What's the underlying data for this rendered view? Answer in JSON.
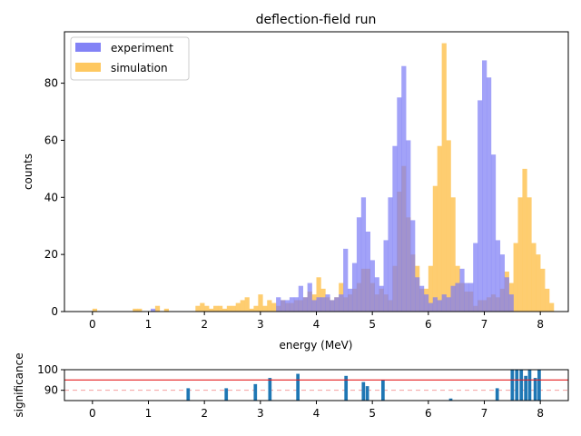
{
  "chart_data": [
    {
      "type": "histogram",
      "title": "deflection-field run",
      "xlabel": "energy (MeV)",
      "ylabel": "counts",
      "xlim": [
        -0.5,
        8.5
      ],
      "ylim": [
        0,
        98
      ],
      "x_ticks": [
        "0",
        "1",
        "2",
        "3",
        "4",
        "5",
        "6",
        "7",
        "8"
      ],
      "y_ticks": [
        "0",
        "20",
        "40",
        "60",
        "80"
      ],
      "legend_position": "top-left",
      "bin_start": 0,
      "bin_width": 0.08,
      "series": [
        {
          "name": "experiment",
          "color": "#7b7bf5",
          "values": [
            0,
            0,
            0,
            0,
            0,
            0,
            0,
            0,
            0,
            0,
            0,
            0,
            0,
            1,
            0,
            0,
            0,
            0,
            0,
            0,
            0,
            0,
            0,
            0,
            0,
            0,
            0,
            0,
            0,
            0,
            0,
            0,
            0,
            0,
            0,
            0,
            0,
            0,
            0,
            0,
            0,
            5,
            4,
            4,
            5,
            5,
            9,
            5,
            10,
            4,
            5,
            5,
            6,
            4,
            5,
            6,
            22,
            8,
            17,
            33,
            40,
            28,
            18,
            12,
            9,
            25,
            40,
            58,
            75,
            86,
            60,
            32,
            12,
            9,
            6,
            3,
            5,
            4,
            6,
            5,
            9,
            10,
            15,
            10,
            10,
            24,
            74,
            88,
            82,
            55,
            25,
            20,
            12,
            6
          ]
        },
        {
          "name": "simulation",
          "color": "#fec860",
          "values": [
            1,
            0,
            0,
            0,
            0,
            0,
            0,
            0,
            0,
            1,
            1,
            0,
            0,
            0,
            2,
            0,
            1,
            0,
            0,
            0,
            0,
            0,
            0,
            2,
            3,
            2,
            1,
            2,
            2,
            1,
            2,
            2,
            3,
            4,
            5,
            1,
            2,
            6,
            2,
            4,
            3,
            2,
            4,
            3,
            3,
            4,
            4,
            5,
            7,
            6,
            12,
            8,
            5,
            4,
            5,
            10,
            5,
            6,
            8,
            10,
            15,
            15,
            10,
            6,
            8,
            6,
            4,
            16,
            42,
            51,
            33,
            20,
            16,
            8,
            8,
            16,
            44,
            58,
            94,
            60,
            40,
            16,
            10,
            7,
            7,
            2,
            4,
            4,
            5,
            6,
            5,
            8,
            14,
            10,
            24,
            40,
            50,
            40,
            24,
            20,
            15,
            8,
            3,
            0
          ]
        }
      ]
    },
    {
      "type": "bar",
      "xlabel": "",
      "ylabel": "significance",
      "xlim": [
        -0.5,
        8.5
      ],
      "ylim": [
        85,
        100
      ],
      "x_ticks": [
        "0",
        "1",
        "2",
        "3",
        "4",
        "5",
        "6",
        "7",
        "8"
      ],
      "y_ticks": [
        "90",
        "100"
      ],
      "threshold": 95,
      "reference": 90,
      "bar_color": "#1f77b4",
      "threshold_color": "#e41a1c",
      "reference_color": "#f4a0a0",
      "bins": [
        {
          "x": 1.68,
          "v": 91
        },
        {
          "x": 2.36,
          "v": 91
        },
        {
          "x": 2.88,
          "v": 93
        },
        {
          "x": 3.14,
          "v": 96
        },
        {
          "x": 3.64,
          "v": 98
        },
        {
          "x": 4.5,
          "v": 97
        },
        {
          "x": 4.81,
          "v": 94
        },
        {
          "x": 4.88,
          "v": 92
        },
        {
          "x": 5.16,
          "v": 95
        },
        {
          "x": 6.37,
          "v": 86
        },
        {
          "x": 7.2,
          "v": 91
        },
        {
          "x": 7.47,
          "v": 100
        },
        {
          "x": 7.55,
          "v": 100
        },
        {
          "x": 7.63,
          "v": 100
        },
        {
          "x": 7.71,
          "v": 97
        },
        {
          "x": 7.78,
          "v": 100
        },
        {
          "x": 7.88,
          "v": 96
        },
        {
          "x": 7.95,
          "v": 100
        }
      ]
    }
  ]
}
